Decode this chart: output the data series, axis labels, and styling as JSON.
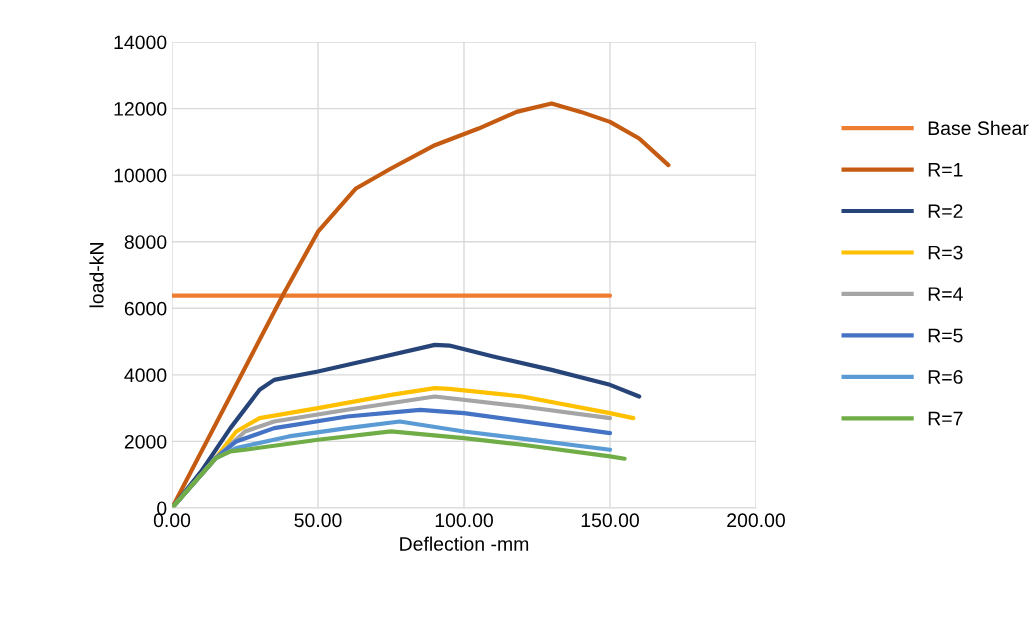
{
  "chart_data": {
    "type": "line",
    "xlabel": "Deflection -mm",
    "ylabel": "load-kN",
    "xlim": [
      0,
      200
    ],
    "xticks": [
      {
        "value": 0,
        "label": "0.00"
      },
      {
        "value": 50,
        "label": "50.00"
      },
      {
        "value": 100,
        "label": "100.00"
      },
      {
        "value": 150,
        "label": "150.00"
      },
      {
        "value": 200,
        "label": "200.00"
      }
    ],
    "ylim": [
      0,
      14000
    ],
    "yticks": [
      0,
      2000,
      4000,
      6000,
      8000,
      10000,
      12000,
      14000
    ],
    "grid": true,
    "legend": "right",
    "marker": "none",
    "line_style": "solid",
    "series": [
      {
        "name": "Base Shear",
        "color": "#ed7d31",
        "x": [
          0,
          150
        ],
        "values": [
          6380,
          6380
        ]
      },
      {
        "name": "R=1",
        "color": "#c55a11",
        "x": [
          0,
          38,
          50,
          63,
          75,
          90,
          105,
          118,
          130,
          140,
          150,
          160,
          170
        ],
        "values": [
          0,
          6400,
          8300,
          9600,
          10200,
          10900,
          11400,
          11900,
          12150,
          11900,
          11600,
          11100,
          10300
        ]
      },
      {
        "name": "R=2",
        "color": "#264478",
        "x": [
          0,
          10,
          20,
          30,
          35,
          50,
          70,
          90,
          95,
          110,
          130,
          150,
          160
        ],
        "values": [
          0,
          1100,
          2400,
          3550,
          3850,
          4100,
          4500,
          4900,
          4880,
          4550,
          4150,
          3700,
          3350
        ]
      },
      {
        "name": "R=3",
        "color": "#ffc000",
        "x": [
          0,
          15,
          22,
          30,
          50,
          75,
          90,
          95,
          120,
          150,
          158
        ],
        "values": [
          0,
          1500,
          2300,
          2700,
          3000,
          3400,
          3600,
          3580,
          3350,
          2850,
          2700
        ]
      },
      {
        "name": "R=4",
        "color": "#a5a5a5",
        "x": [
          0,
          15,
          25,
          35,
          60,
          90,
          120,
          150
        ],
        "values": [
          0,
          1500,
          2300,
          2600,
          2950,
          3350,
          3050,
          2700
        ]
      },
      {
        "name": "R=5",
        "color": "#4472c4",
        "x": [
          0,
          15,
          22,
          35,
          60,
          85,
          100,
          150
        ],
        "values": [
          0,
          1500,
          2000,
          2400,
          2750,
          2950,
          2850,
          2250
        ]
      },
      {
        "name": "R=6",
        "color": "#5b9bd5",
        "x": [
          0,
          15,
          22,
          40,
          60,
          78,
          100,
          150
        ],
        "values": [
          0,
          1500,
          1800,
          2150,
          2400,
          2600,
          2300,
          1750
        ]
      },
      {
        "name": "R=7",
        "color": "#70ad47",
        "x": [
          0,
          15,
          20,
          25,
          50,
          75,
          100,
          120,
          150,
          155
        ],
        "values": [
          0,
          1500,
          1700,
          1750,
          2050,
          2300,
          2100,
          1900,
          1550,
          1480
        ]
      }
    ]
  }
}
